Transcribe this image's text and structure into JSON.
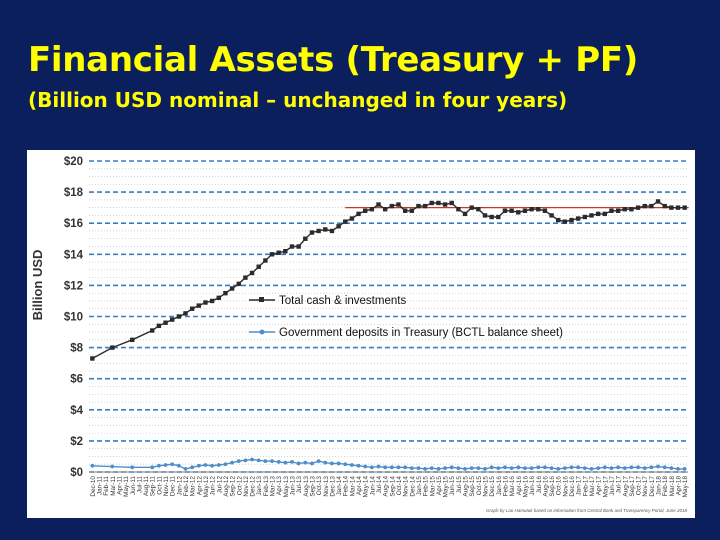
{
  "slide": {
    "title": "Financial Assets (Treasury + PF)",
    "subtitle": "(Billion USD nominal – unchanged in four years)"
  },
  "colors": {
    "background": "#0b1f5c",
    "title": "#ffff00",
    "total_series": "#2b2b2b",
    "deposits_series": "#4f8ec9",
    "reference_line": "#c0392b",
    "major_grid": "#3a7cc0",
    "minor_grid": "#b9b9b9"
  },
  "chart_data": {
    "type": "line",
    "ylabel": "Billion USD",
    "ylim": [
      0,
      20
    ],
    "ytick_labels": [
      "$0",
      "$2",
      "$4",
      "$6",
      "$8",
      "$10",
      "$12",
      "$14",
      "$16",
      "$18",
      "$20"
    ],
    "ytick_values": [
      0,
      2,
      4,
      6,
      8,
      10,
      12,
      14,
      16,
      18,
      20
    ],
    "grid": "dashed horizontal every $2, dotted minor every $0.5",
    "legend_position": "center",
    "categories": [
      "Dec-10",
      "Jan-11",
      "Feb-11",
      "Mar-11",
      "Apr-11",
      "May-11",
      "Jun-11",
      "Jul-11",
      "Aug-11",
      "Sep-11",
      "Oct-11",
      "Nov-11",
      "Dec-11",
      "Jan-12",
      "Feb-12",
      "Mar-12",
      "Apr-12",
      "May-12",
      "Jun-12",
      "Jul-12",
      "Aug-12",
      "Sep-12",
      "Oct-12",
      "Nov-12",
      "Dec-12",
      "Jan-13",
      "Feb-13",
      "Mar-13",
      "Apr-13",
      "May-13",
      "Jun-13",
      "Jul-13",
      "Aug-13",
      "Sep-13",
      "Oct-13",
      "Nov-13",
      "Dec-13",
      "Jan-14",
      "Feb-14",
      "Mar-14",
      "Apr-14",
      "May-14",
      "Jun-14",
      "Jul-14",
      "Aug-14",
      "Sep-14",
      "Oct-14",
      "Nov-14",
      "Dec-14",
      "Jan-15",
      "Feb-15",
      "Mar-15",
      "Apr-15",
      "May-15",
      "Jun-15",
      "Jul-15",
      "Aug-15",
      "Sep-15",
      "Oct-15",
      "Nov-15",
      "Dec-15",
      "Jan-16",
      "Feb-16",
      "Mar-16",
      "Apr-16",
      "May-16",
      "Jun-16",
      "Jul-16",
      "Aug-16",
      "Sep-16",
      "Oct-16",
      "Nov-16",
      "Dec-16",
      "Jan-17",
      "Feb-17",
      "Mar-17",
      "Apr-17",
      "May-17",
      "Jun-17",
      "Jul-17",
      "Aug-17",
      "Sep-17",
      "Oct-17",
      "Nov-17",
      "Dec-17",
      "Jan-18",
      "Feb-18",
      "Mar-18",
      "Apr-18",
      "May-18"
    ],
    "x_tick_labels": [
      "Dec-10",
      "Jan-11",
      "Feb-11",
      "Mar-11",
      "Apr-11",
      "May-11",
      "Jun-11",
      "Jul-11",
      "Aug-11",
      "Sep-11",
      "Oct-11",
      "Nov-11",
      "Dec-11",
      "Jan-12",
      "Feb-12",
      "Mar-12",
      "Apr-12",
      "May-12",
      "Jun-12",
      "Jul-12",
      "Aug-12",
      "Sep-12",
      "Oct-12",
      "Nov-12",
      "Dec-12",
      "Jan-13",
      "Feb-13",
      "Mar-13",
      "Apr-13",
      "May-13",
      "Jun-13",
      "Jul-13",
      "Aug-13",
      "Sep-13",
      "Oct-13",
      "Nov-13",
      "Dec-13",
      "Jan-14",
      "Feb-14",
      "Mar-14",
      "Apr-14",
      "May-14",
      "Jun-14",
      "Jul-14",
      "Aug-14",
      "Sep-14",
      "Oct-14",
      "Nov-14",
      "Dec-14",
      "Jan-15",
      "Feb-15",
      "Mar-15",
      "Apr-15",
      "May-15",
      "Jun-15",
      "Jul-15",
      "Aug-15",
      "Sep-15",
      "Oct-15",
      "Nov-15",
      "Dec-15",
      "Jan-16",
      "Feb-16",
      "Mar-16",
      "Apr-16",
      "May-16",
      "Jun-16",
      "Jul-16",
      "Aug-16",
      "Sep-16",
      "Oct-16",
      "Nov-16",
      "Dec-16",
      "Jan-17",
      "Feb-17",
      "Mar-17",
      "Apr-17",
      "May-17",
      "Jun-17",
      "Jul-17",
      "Aug-17",
      "Sep-17",
      "Oct-17",
      "Nov-17",
      "Dec-17",
      "Jan-18",
      "Feb-18",
      "Mar-18",
      "Apr-18",
      "May-18"
    ],
    "series": [
      {
        "name": "Total cash & investments",
        "color": "#2b2b2b",
        "marker": "square",
        "values": [
          7.3,
          null,
          null,
          8.0,
          null,
          null,
          8.5,
          null,
          null,
          9.1,
          9.4,
          9.6,
          9.8,
          10.0,
          10.2,
          10.5,
          10.7,
          10.9,
          11.0,
          11.2,
          11.5,
          11.8,
          12.1,
          12.5,
          12.8,
          13.2,
          13.6,
          14.0,
          14.1,
          14.2,
          14.5,
          14.5,
          15.0,
          15.4,
          15.5,
          15.6,
          15.5,
          15.8,
          16.1,
          16.3,
          16.6,
          16.8,
          16.9,
          17.2,
          16.9,
          17.1,
          17.2,
          16.8,
          16.8,
          17.1,
          17.1,
          17.3,
          17.3,
          17.2,
          17.3,
          16.9,
          16.6,
          17.0,
          16.9,
          16.5,
          16.4,
          16.4,
          16.8,
          16.8,
          16.7,
          16.8,
          16.9,
          16.9,
          16.8,
          16.5,
          16.2,
          16.1,
          16.2,
          16.3,
          16.4,
          16.5,
          16.6,
          16.6,
          16.8,
          16.8,
          16.9,
          16.9,
          17.0,
          17.1,
          17.1,
          17.4,
          17.1,
          17.0,
          17.0,
          17.0
        ]
      },
      {
        "name": "Government deposits in Treasury (BCTL balance sheet)",
        "color": "#4f8ec9",
        "marker": "circle",
        "values": [
          0.4,
          null,
          null,
          0.35,
          null,
          null,
          0.3,
          null,
          null,
          0.3,
          0.4,
          0.45,
          0.5,
          0.4,
          0.2,
          0.3,
          0.4,
          0.45,
          0.4,
          0.45,
          0.5,
          0.6,
          0.7,
          0.75,
          0.8,
          0.75,
          0.7,
          0.7,
          0.65,
          0.6,
          0.65,
          0.55,
          0.6,
          0.55,
          0.7,
          0.6,
          0.55,
          0.55,
          0.5,
          0.45,
          0.4,
          0.35,
          0.3,
          0.35,
          0.3,
          0.3,
          0.3,
          0.3,
          0.25,
          0.25,
          0.2,
          0.25,
          0.2,
          0.25,
          0.3,
          0.25,
          0.2,
          0.25,
          0.25,
          0.2,
          0.3,
          0.25,
          0.3,
          0.25,
          0.3,
          0.25,
          0.25,
          0.3,
          0.3,
          0.25,
          0.2,
          0.25,
          0.3,
          0.3,
          0.25,
          0.2,
          0.25,
          0.3,
          0.25,
          0.3,
          0.25,
          0.3,
          0.3,
          0.25,
          0.3,
          0.35,
          0.3,
          0.25,
          0.2,
          0.2
        ]
      }
    ],
    "reference_line": {
      "value": 17.0,
      "from": "Feb-14",
      "to": "May-18",
      "color": "#c0392b"
    },
    "annotation": "Graph by Lao Hamutuk based on information from Central Bank and Transparency Portal, June 2018"
  }
}
